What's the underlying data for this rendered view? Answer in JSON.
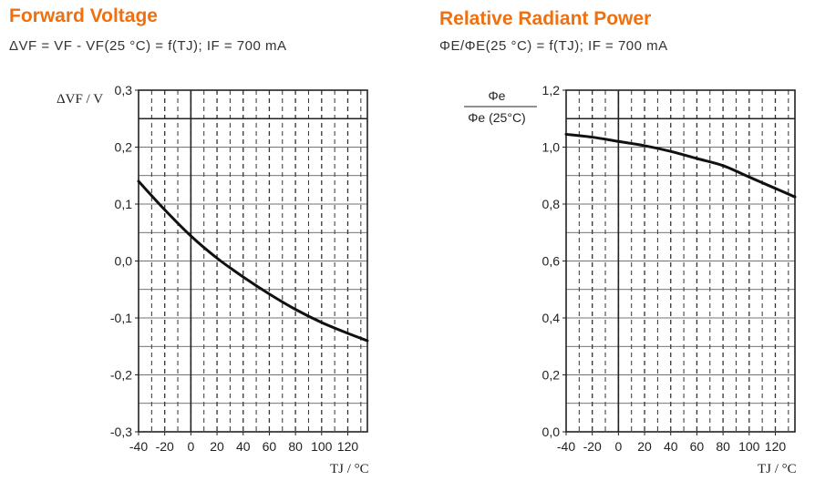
{
  "charts": [
    {
      "title": "Forward Voltage",
      "formula": "ΔVF = VF - VF(25 °C) = f(TJ); IF = 700 mA",
      "ylabel": "ΔVF / V",
      "xlabel": "TJ / °C"
    },
    {
      "title": "Relative Radiant Power",
      "formula": "ΦE/ΦE(25 °C) = f(TJ); IF = 700 mA",
      "ylabel_num": "Φe",
      "ylabel_den": "Φe (25°C)",
      "xlabel": "TJ / °C"
    }
  ],
  "chart_data": [
    {
      "type": "line",
      "title": "Forward Voltage",
      "xlabel": "TJ / °C",
      "ylabel": "ΔVF / V",
      "xlim": [
        -40,
        135
      ],
      "ylim": [
        -0.3,
        0.3
      ],
      "xticks": [
        -40,
        -20,
        0,
        20,
        40,
        60,
        80,
        100,
        120
      ],
      "yticks": [
        -0.3,
        -0.2,
        -0.1,
        0.0,
        0.1,
        0.2,
        0.3
      ],
      "ytick_labels": [
        "-0,3",
        "-0,2",
        "-0,1",
        "0,0",
        "0,1",
        "0,2",
        "0,3"
      ],
      "grid": true,
      "series": [
        {
          "x": [
            -40,
            -20,
            0,
            20,
            40,
            60,
            80,
            100,
            120,
            135
          ],
          "y": [
            0.14,
            0.09,
            0.044,
            0.005,
            -0.028,
            -0.058,
            -0.085,
            -0.108,
            -0.127,
            -0.14
          ]
        }
      ]
    },
    {
      "type": "line",
      "title": "Relative Radiant Power",
      "xlabel": "TJ / °C",
      "ylabel": "Φe / Φe (25°C)",
      "xlim": [
        -40,
        135
      ],
      "ylim": [
        0.0,
        1.2
      ],
      "xticks": [
        -40,
        -20,
        0,
        20,
        40,
        60,
        80,
        100,
        120
      ],
      "yticks": [
        0.0,
        0.2,
        0.4,
        0.6,
        0.8,
        1.0,
        1.2
      ],
      "ytick_labels": [
        "0,0",
        "0,2",
        "0,4",
        "0,6",
        "0,8",
        "1,0",
        "1,2"
      ],
      "grid": true,
      "series": [
        {
          "x": [
            -40,
            -20,
            0,
            20,
            40,
            60,
            80,
            100,
            120,
            135
          ],
          "y": [
            1.045,
            1.035,
            1.02,
            1.005,
            0.985,
            0.96,
            0.935,
            0.895,
            0.855,
            0.825
          ]
        }
      ]
    }
  ]
}
